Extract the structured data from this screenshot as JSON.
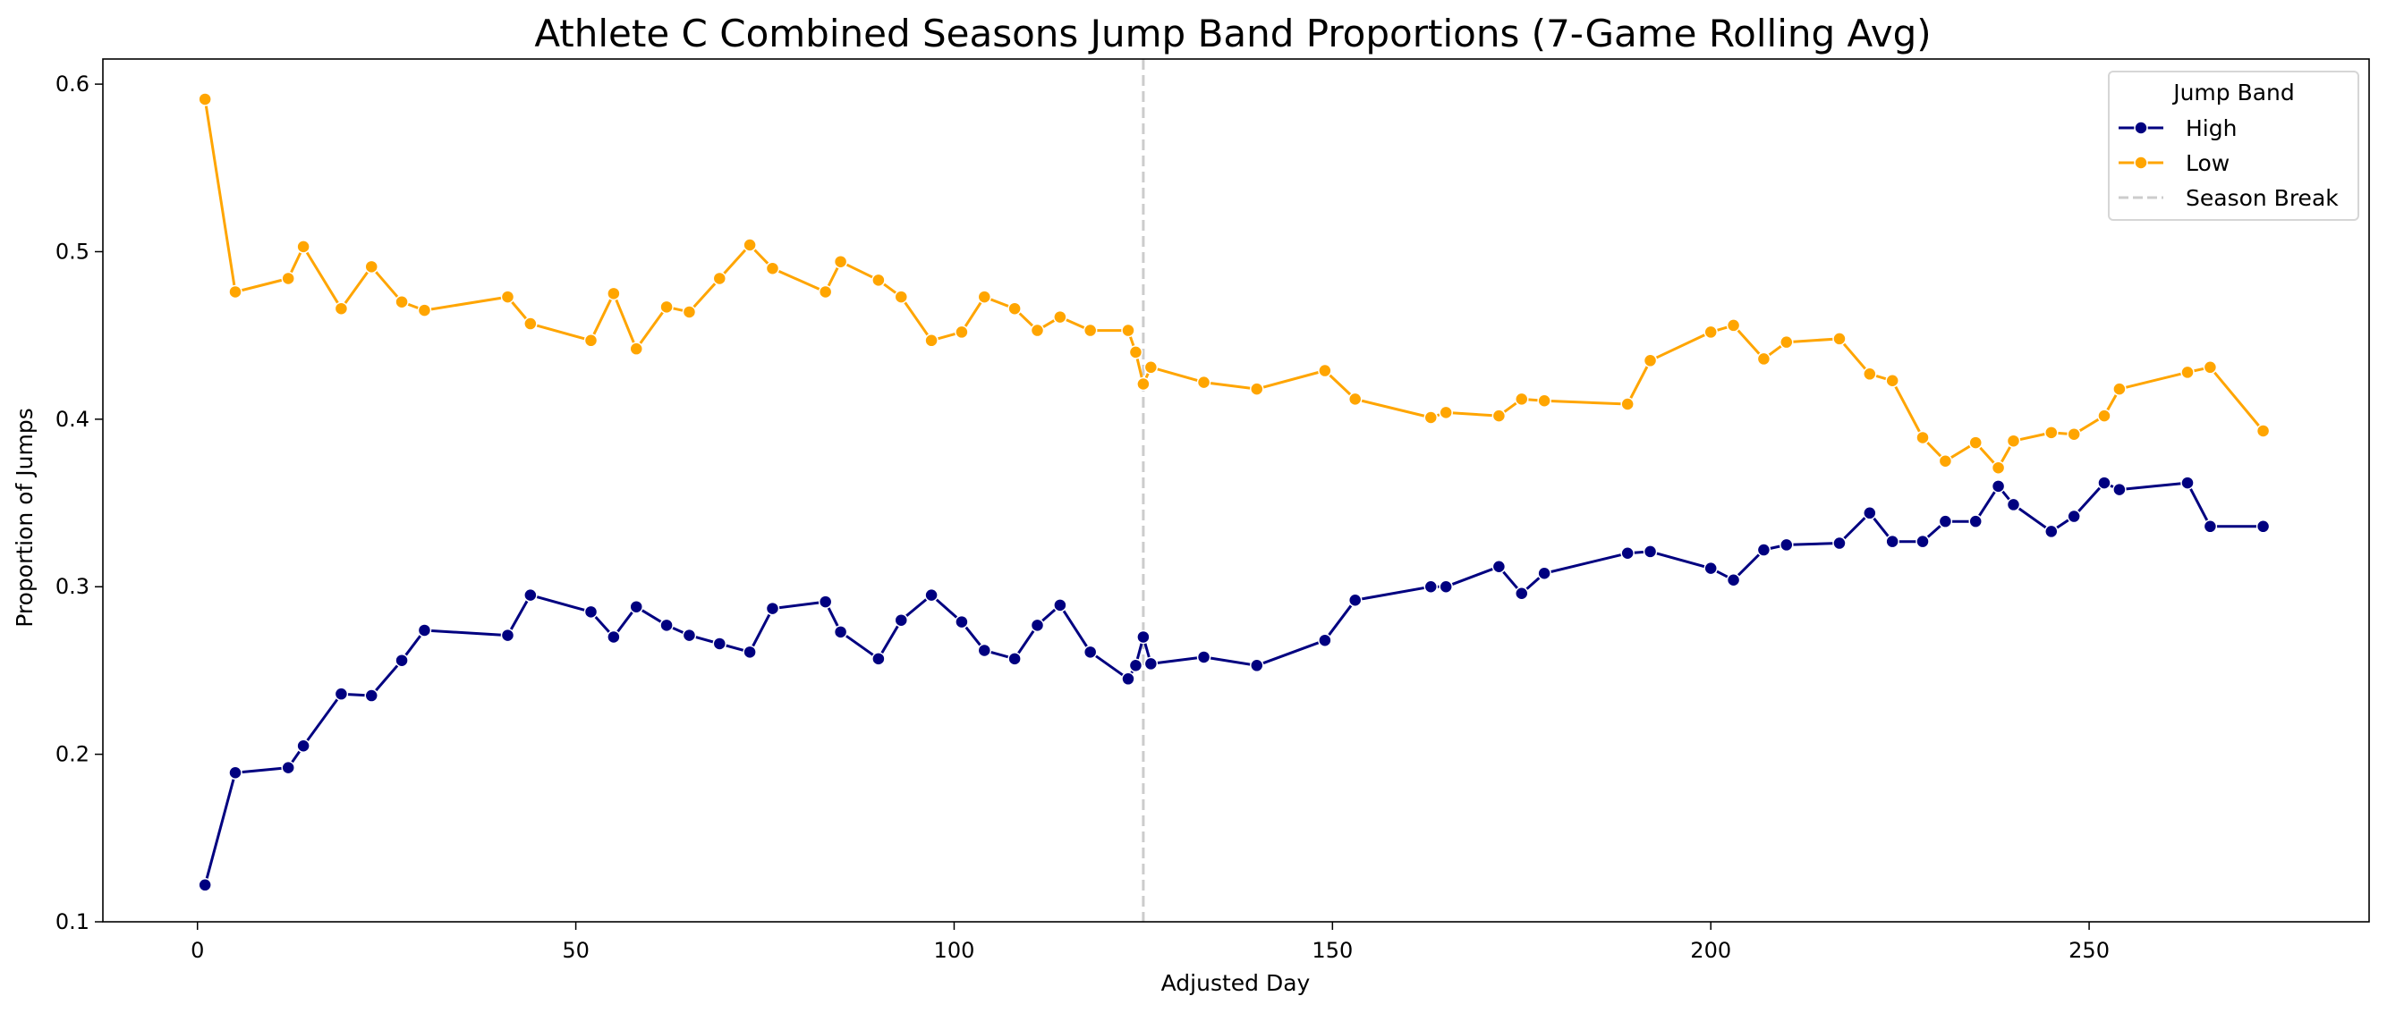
{
  "chart_data": {
    "type": "line",
    "title": "Athlete C Combined Seasons Jump Band Proportions (7-Game Rolling Avg)",
    "xlabel": "Adjusted Day",
    "ylabel": "Proportion of Jumps",
    "xlim": [
      -12.5,
      287
    ],
    "ylim": [
      0.1,
      0.615
    ],
    "xticks": [
      0,
      50,
      100,
      150,
      200,
      250
    ],
    "yticks": [
      0.1,
      0.2,
      0.3,
      0.4,
      0.5,
      0.6
    ],
    "grid": false,
    "legend": {
      "title": "Jump Band",
      "placement": "top-right",
      "entries": [
        "High",
        "Low",
        "Season Break"
      ]
    },
    "season_break": {
      "x": 125,
      "label": "Season Break",
      "color": "#cccccc"
    },
    "series": [
      {
        "name": "High",
        "color": "#000080",
        "x": [
          1,
          5,
          12,
          14,
          19,
          23,
          27,
          30,
          41,
          44,
          52,
          55,
          58,
          62,
          65,
          69,
          73,
          76,
          83,
          85,
          90,
          93,
          97,
          101,
          104,
          108,
          111,
          114,
          118,
          123,
          124,
          125,
          126,
          133,
          140,
          149,
          153,
          163,
          165,
          172,
          175,
          178,
          189,
          192,
          200,
          203,
          207,
          210,
          217,
          221,
          224,
          228,
          231,
          235,
          238,
          240,
          245,
          248,
          252,
          254,
          263,
          266,
          273
        ],
        "values": [
          0.122,
          0.189,
          0.192,
          0.205,
          0.236,
          0.235,
          0.256,
          0.274,
          0.271,
          0.295,
          0.285,
          0.27,
          0.288,
          0.277,
          0.271,
          0.266,
          0.261,
          0.287,
          0.291,
          0.273,
          0.257,
          0.28,
          0.295,
          0.279,
          0.262,
          0.257,
          0.277,
          0.289,
          0.261,
          0.245,
          0.253,
          0.27,
          0.254,
          0.258,
          0.253,
          0.268,
          0.292,
          0.3,
          0.3,
          0.312,
          0.296,
          0.308,
          0.32,
          0.321,
          0.311,
          0.304,
          0.322,
          0.325,
          0.326,
          0.344,
          0.327,
          0.327,
          0.339,
          0.339,
          0.36,
          0.349,
          0.333,
          0.342,
          0.362,
          0.358,
          0.362,
          0.336,
          0.336
        ]
      },
      {
        "name": "Low",
        "color": "#ffa500",
        "x": [
          1,
          5,
          12,
          14,
          19,
          23,
          27,
          30,
          41,
          44,
          52,
          55,
          58,
          62,
          65,
          69,
          73,
          76,
          83,
          85,
          90,
          93,
          97,
          101,
          104,
          108,
          111,
          114,
          118,
          123,
          124,
          125,
          126,
          133,
          140,
          149,
          153,
          163,
          165,
          172,
          175,
          178,
          189,
          192,
          200,
          203,
          207,
          210,
          217,
          221,
          224,
          228,
          231,
          235,
          238,
          240,
          245,
          248,
          252,
          254,
          263,
          266,
          273
        ],
        "values": [
          0.591,
          0.476,
          0.484,
          0.503,
          0.466,
          0.491,
          0.47,
          0.465,
          0.473,
          0.457,
          0.447,
          0.475,
          0.442,
          0.467,
          0.464,
          0.484,
          0.504,
          0.49,
          0.476,
          0.494,
          0.483,
          0.473,
          0.447,
          0.452,
          0.473,
          0.466,
          0.453,
          0.461,
          0.453,
          0.453,
          0.44,
          0.421,
          0.431,
          0.422,
          0.418,
          0.429,
          0.412,
          0.401,
          0.404,
          0.402,
          0.412,
          0.411,
          0.409,
          0.435,
          0.452,
          0.456,
          0.436,
          0.446,
          0.448,
          0.427,
          0.423,
          0.389,
          0.375,
          0.386,
          0.371,
          0.387,
          0.392,
          0.391,
          0.402,
          0.418,
          0.428,
          0.431,
          0.393
        ]
      }
    ]
  }
}
